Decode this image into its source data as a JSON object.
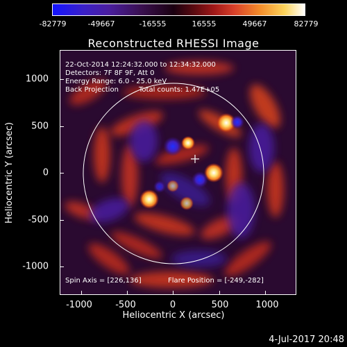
{
  "colorbar": {
    "labels": [
      "-82779",
      "-49667",
      "-16555",
      "16555",
      "49667",
      "82779"
    ]
  },
  "title": "Reconstructed RHESSI Image",
  "info": {
    "line1": "22-Oct-2014 12:24:32.000 to 12:34:32.000",
    "line2": "Detectors: 7F 8F 9F, Att 0",
    "line3": "Energy Range: 6.0 - 25.0 keV",
    "line4a": "Back Projection",
    "line4b": "Total counts: 1.47E+05",
    "spin_axis": "Spin Axis = [226,136]",
    "flare_position": "Flare Position = [-249,-282]"
  },
  "axes": {
    "xlabel": "Heliocentric X (arcsec)",
    "ylabel": "Heliocentric Y (arcsec)",
    "xticks": [
      "-1000",
      "-500",
      "0",
      "500",
      "1000"
    ],
    "yticks": [
      "1000",
      "500",
      "0",
      "-500",
      "-1000"
    ]
  },
  "timestamp": "4-Jul-2017 20:48",
  "colors": {
    "background": "#000000",
    "positive_high": "#ffffff",
    "negative_high": "#1414ff"
  }
}
